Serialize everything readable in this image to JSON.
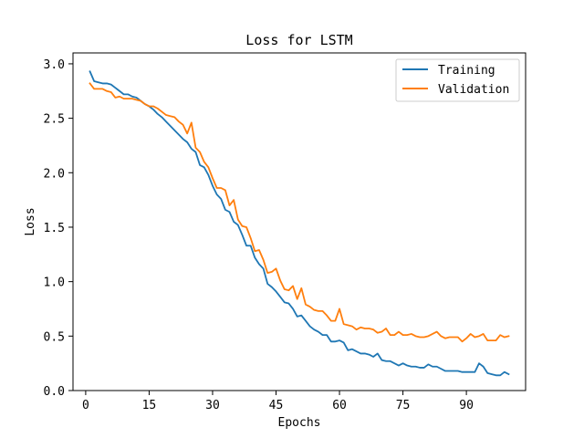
{
  "chart_data": {
    "type": "line",
    "title": "Loss for LSTM",
    "xlabel": "Epochs",
    "ylabel": "Loss",
    "xlim": [
      -3,
      104
    ],
    "ylim": [
      0,
      3.1
    ],
    "xticks": [
      0,
      15,
      30,
      45,
      60,
      75,
      90
    ],
    "yticks": [
      0.0,
      0.5,
      1.0,
      1.5,
      2.0,
      2.5,
      3.0
    ],
    "ytick_labels": [
      "0.0",
      "0.5",
      "1.0",
      "1.5",
      "2.0",
      "2.5",
      "3.0"
    ],
    "grid": false,
    "legend_position": "top-right",
    "x": [
      1,
      2,
      3,
      4,
      5,
      6,
      7,
      8,
      9,
      10,
      11,
      12,
      13,
      14,
      15,
      16,
      17,
      18,
      19,
      20,
      21,
      22,
      23,
      24,
      25,
      26,
      27,
      28,
      29,
      30,
      31,
      32,
      33,
      34,
      35,
      36,
      37,
      38,
      39,
      40,
      41,
      42,
      43,
      44,
      45,
      46,
      47,
      48,
      49,
      50,
      51,
      52,
      53,
      54,
      55,
      56,
      57,
      58,
      59,
      60,
      61,
      62,
      63,
      64,
      65,
      66,
      67,
      68,
      69,
      70,
      71,
      72,
      73,
      74,
      75,
      76,
      77,
      78,
      79,
      80,
      81,
      82,
      83,
      84,
      85,
      86,
      87,
      88,
      89,
      90,
      91,
      92,
      93,
      94,
      95,
      96,
      97,
      98,
      99,
      100
    ],
    "series": [
      {
        "name": "Training",
        "color": "#1f77b4",
        "values": [
          2.93,
          2.84,
          2.83,
          2.82,
          2.82,
          2.81,
          2.78,
          2.75,
          2.72,
          2.72,
          2.7,
          2.69,
          2.66,
          2.63,
          2.61,
          2.58,
          2.54,
          2.51,
          2.47,
          2.43,
          2.39,
          2.35,
          2.31,
          2.28,
          2.22,
          2.19,
          2.07,
          2.05,
          1.98,
          1.88,
          1.8,
          1.76,
          1.66,
          1.64,
          1.55,
          1.52,
          1.43,
          1.33,
          1.33,
          1.22,
          1.16,
          1.12,
          0.98,
          0.95,
          0.91,
          0.86,
          0.81,
          0.8,
          0.75,
          0.68,
          0.69,
          0.64,
          0.59,
          0.56,
          0.54,
          0.51,
          0.51,
          0.45,
          0.45,
          0.46,
          0.44,
          0.37,
          0.38,
          0.36,
          0.34,
          0.34,
          0.33,
          0.31,
          0.34,
          0.28,
          0.27,
          0.27,
          0.25,
          0.23,
          0.25,
          0.23,
          0.22,
          0.22,
          0.21,
          0.21,
          0.24,
          0.22,
          0.22,
          0.2,
          0.18,
          0.18,
          0.18,
          0.18,
          0.17,
          0.17,
          0.17,
          0.17,
          0.25,
          0.22,
          0.16,
          0.15,
          0.14,
          0.14,
          0.17,
          0.15
        ]
      },
      {
        "name": "Validation",
        "color": "#ff7f0e",
        "values": [
          2.82,
          2.77,
          2.77,
          2.77,
          2.75,
          2.74,
          2.69,
          2.7,
          2.68,
          2.68,
          2.68,
          2.67,
          2.66,
          2.63,
          2.61,
          2.61,
          2.59,
          2.56,
          2.53,
          2.52,
          2.51,
          2.47,
          2.44,
          2.36,
          2.46,
          2.23,
          2.19,
          2.1,
          2.05,
          1.95,
          1.86,
          1.86,
          1.84,
          1.7,
          1.75,
          1.57,
          1.51,
          1.5,
          1.4,
          1.28,
          1.29,
          1.2,
          1.08,
          1.09,
          1.12,
          1.01,
          0.93,
          0.92,
          0.96,
          0.84,
          0.94,
          0.79,
          0.77,
          0.74,
          0.73,
          0.73,
          0.69,
          0.64,
          0.64,
          0.75,
          0.61,
          0.6,
          0.59,
          0.56,
          0.58,
          0.57,
          0.57,
          0.56,
          0.53,
          0.54,
          0.57,
          0.51,
          0.51,
          0.54,
          0.51,
          0.51,
          0.52,
          0.5,
          0.49,
          0.49,
          0.5,
          0.52,
          0.54,
          0.5,
          0.48,
          0.49,
          0.49,
          0.49,
          0.45,
          0.48,
          0.52,
          0.49,
          0.5,
          0.52,
          0.46,
          0.46,
          0.46,
          0.51,
          0.49,
          0.5
        ]
      }
    ]
  }
}
